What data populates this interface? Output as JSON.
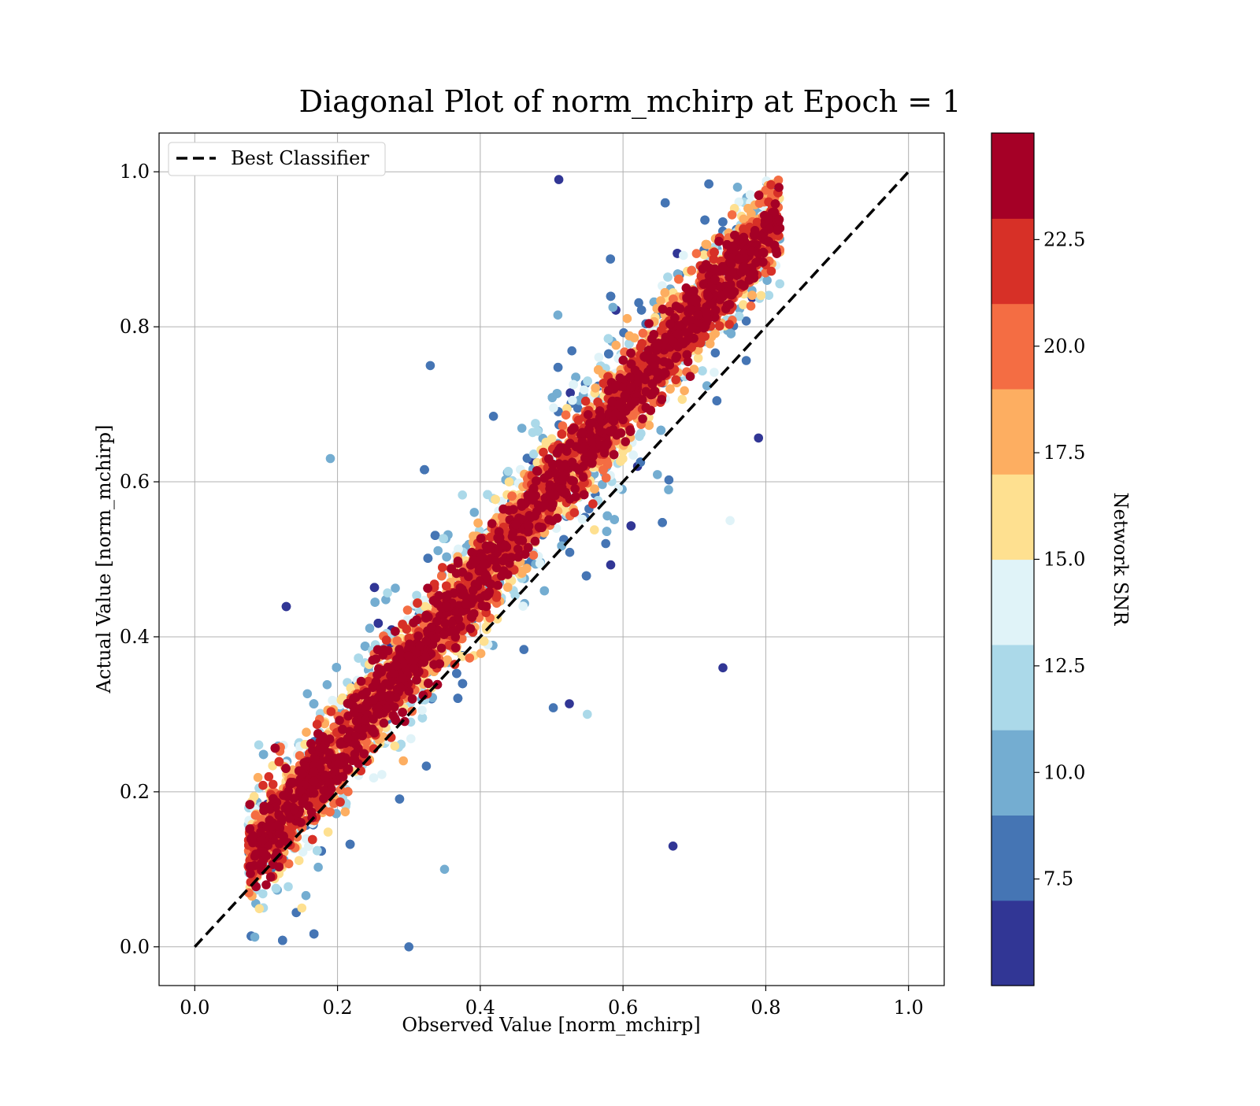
{
  "chart_data": {
    "type": "scatter",
    "title": "Diagonal Plot of norm_mchirp at Epoch = 1",
    "xlabel": "Observed Value [norm_mchirp]",
    "ylabel": "Actual Value [norm_mchirp]",
    "xlim": [
      -0.05,
      1.05
    ],
    "ylim": [
      -0.05,
      1.05
    ],
    "xticks": [
      "0.0",
      "0.2",
      "0.4",
      "0.6",
      "0.8",
      "1.0"
    ],
    "yticks": [
      "0.0",
      "0.2",
      "0.4",
      "0.6",
      "0.8",
      "1.0"
    ],
    "grid": true,
    "legend": {
      "placement": "top-left",
      "entries": [
        "Best Classifier"
      ]
    },
    "reference_line": {
      "name": "Best Classifier",
      "style": "dashed",
      "color": "#000000",
      "x": [
        0.0,
        1.0
      ],
      "y": [
        0.0,
        1.0
      ]
    },
    "colorbar": {
      "label": "Network SNR",
      "range": [
        5.0,
        25.0
      ],
      "ticks": [
        "7.5",
        "10.0",
        "12.5",
        "15.0",
        "17.5",
        "20.0",
        "22.5"
      ],
      "colors": [
        "#313695",
        "#4575b4",
        "#74add1",
        "#abd9e9",
        "#e0f3f8",
        "#fee090",
        "#fdae61",
        "#f46d43",
        "#d73027",
        "#a50026"
      ]
    },
    "series": [
      {
        "values_shown": "dense point cloud around the diagonal; high-SNR points (dark red) lie close to y = x, low-SNR points (blue) spread farther away",
        "x_range": [
          0.07,
          0.83
        ],
        "y_range": [
          0.0,
          0.99
        ],
        "sample_points": [
          {
            "x": 0.1,
            "y": 0.08,
            "snr": 23
          },
          {
            "x": 0.2,
            "y": 0.22,
            "snr": 23
          },
          {
            "x": 0.3,
            "y": 0.33,
            "snr": 23
          },
          {
            "x": 0.4,
            "y": 0.45,
            "snr": 23
          },
          {
            "x": 0.5,
            "y": 0.57,
            "snr": 23
          },
          {
            "x": 0.6,
            "y": 0.68,
            "snr": 23
          },
          {
            "x": 0.7,
            "y": 0.8,
            "snr": 23
          },
          {
            "x": 0.8,
            "y": 0.88,
            "snr": 22
          },
          {
            "x": 0.19,
            "y": 0.63,
            "snr": 9
          },
          {
            "x": 0.51,
            "y": 0.99,
            "snr": 6
          },
          {
            "x": 0.74,
            "y": 0.36,
            "snr": 6
          },
          {
            "x": 0.3,
            "y": 0.0,
            "snr": 7
          },
          {
            "x": 0.67,
            "y": 0.13,
            "snr": 6
          },
          {
            "x": 0.35,
            "y": 0.1,
            "snr": 10
          },
          {
            "x": 0.55,
            "y": 0.3,
            "snr": 12
          },
          {
            "x": 0.33,
            "y": 0.75,
            "snr": 7
          },
          {
            "x": 0.75,
            "y": 0.55,
            "snr": 14
          },
          {
            "x": 0.15,
            "y": 0.05,
            "snr": 15
          }
        ]
      }
    ]
  }
}
